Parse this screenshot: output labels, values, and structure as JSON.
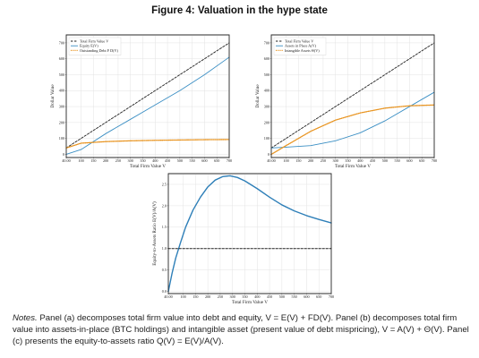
{
  "figure": {
    "title": "Figure 4: Valuation in the hype state"
  },
  "notes": {
    "label": "Notes.",
    "text": "Panel (a) decomposes total firm value into debt and equity, V = E(V) + FD(V). Panel (b) decomposes total firm value into assets-in-place (BTC holdings) and intangible asset (present value of debt mispricing), V = A(V) + Θ(V). Panel (c) presents the equity-to-assets ratio Q(V) = E(V)/A(V)."
  },
  "chart_data": [
    {
      "type": "line",
      "panel": "a",
      "xlabel": "Total Firm Value V",
      "ylabel": "Dollar Value",
      "xlim": [
        40,
        700
      ],
      "ylim": [
        -20,
        750
      ],
      "xticks": [
        40,
        100,
        150,
        200,
        250,
        300,
        350,
        400,
        450,
        500,
        550,
        600,
        650,
        700
      ],
      "xtick_labels": [
        "40.00",
        "100",
        "150",
        "200",
        "250",
        "300",
        "350",
        "400",
        "450",
        "500",
        "550",
        "600",
        "650",
        "700"
      ],
      "yticks": [
        0,
        100,
        200,
        300,
        400,
        500,
        600,
        700
      ],
      "grid": true,
      "legend_position": "top-left",
      "series": [
        {
          "name": "Total Firm Value V",
          "color": "#222222",
          "style": "dashed",
          "x": [
            40,
            700
          ],
          "y": [
            40,
            700
          ]
        },
        {
          "name": "Equity E(V)",
          "color": "#3b8fc4",
          "style": "solid",
          "x": [
            40,
            100,
            200,
            300,
            400,
            500,
            600,
            700
          ],
          "y": [
            0,
            30,
            130,
            220,
            310,
            400,
            500,
            610
          ]
        },
        {
          "name": "Outstanding Debt F D(V)",
          "color": "#e8931e",
          "style": "dotted",
          "x": [
            40,
            100,
            200,
            300,
            400,
            500,
            600,
            700
          ],
          "y": [
            40,
            70,
            80,
            85,
            88,
            90,
            92,
            93
          ]
        }
      ]
    },
    {
      "type": "line",
      "panel": "b",
      "xlabel": "Total Firm Value V",
      "ylabel": "Dollar Value",
      "xlim": [
        40,
        700
      ],
      "ylim": [
        -20,
        750
      ],
      "xticks": [
        40,
        100,
        150,
        200,
        250,
        300,
        350,
        400,
        450,
        500,
        550,
        600,
        650,
        700
      ],
      "xtick_labels": [
        "40.00",
        "100",
        "150",
        "200",
        "250",
        "300",
        "350",
        "400",
        "450",
        "500",
        "550",
        "600",
        "650",
        "700"
      ],
      "yticks": [
        0,
        100,
        200,
        300,
        400,
        500,
        600,
        700
      ],
      "grid": true,
      "legend_position": "top-left",
      "series": [
        {
          "name": "Total Firm Value V",
          "color": "#222222",
          "style": "dashed",
          "x": [
            40,
            700
          ],
          "y": [
            40,
            700
          ]
        },
        {
          "name": "Assets in Place A(V)",
          "color": "#3b8fc4",
          "style": "solid",
          "x": [
            40,
            100,
            200,
            300,
            400,
            500,
            600,
            700
          ],
          "y": [
            40,
            45,
            55,
            85,
            135,
            210,
            300,
            390
          ]
        },
        {
          "name": "Intangible Assets Θ(V)",
          "color": "#e8931e",
          "style": "dotted",
          "x": [
            40,
            100,
            200,
            300,
            400,
            500,
            600,
            700
          ],
          "y": [
            0,
            55,
            145,
            215,
            260,
            290,
            305,
            310
          ]
        }
      ]
    },
    {
      "type": "line",
      "panel": "c",
      "xlabel": "Total Firm Value V",
      "ylabel": "Equity-to-Assets Ratio E(V)/A(V)",
      "xlim": [
        40,
        700
      ],
      "ylim": [
        -0.05,
        2.75
      ],
      "xticks": [
        40,
        100,
        150,
        200,
        250,
        300,
        350,
        400,
        450,
        500,
        550,
        600,
        650,
        700
      ],
      "xtick_labels": [
        "40.00",
        "100",
        "150",
        "200",
        "250",
        "300",
        "350",
        "400",
        "450",
        "500",
        "550",
        "600",
        "650",
        "700"
      ],
      "yticks": [
        0.0,
        0.5,
        1.0,
        1.5,
        2.0,
        2.5
      ],
      "grid": true,
      "series": [
        {
          "color": "#2e7fb8",
          "style": "solid",
          "x": [
            40,
            55,
            70,
            90,
            110,
            140,
            170,
            200,
            230,
            260,
            290,
            320,
            350,
            400,
            450,
            500,
            550,
            600,
            650,
            700
          ],
          "y": [
            0.0,
            0.42,
            0.78,
            1.15,
            1.5,
            1.9,
            2.2,
            2.44,
            2.6,
            2.68,
            2.7,
            2.66,
            2.58,
            2.4,
            2.2,
            2.02,
            1.88,
            1.77,
            1.68,
            1.6
          ]
        },
        {
          "color": "#222222",
          "style": "dashed",
          "x": [
            40,
            700
          ],
          "y": [
            1.0,
            1.0
          ]
        }
      ]
    }
  ]
}
